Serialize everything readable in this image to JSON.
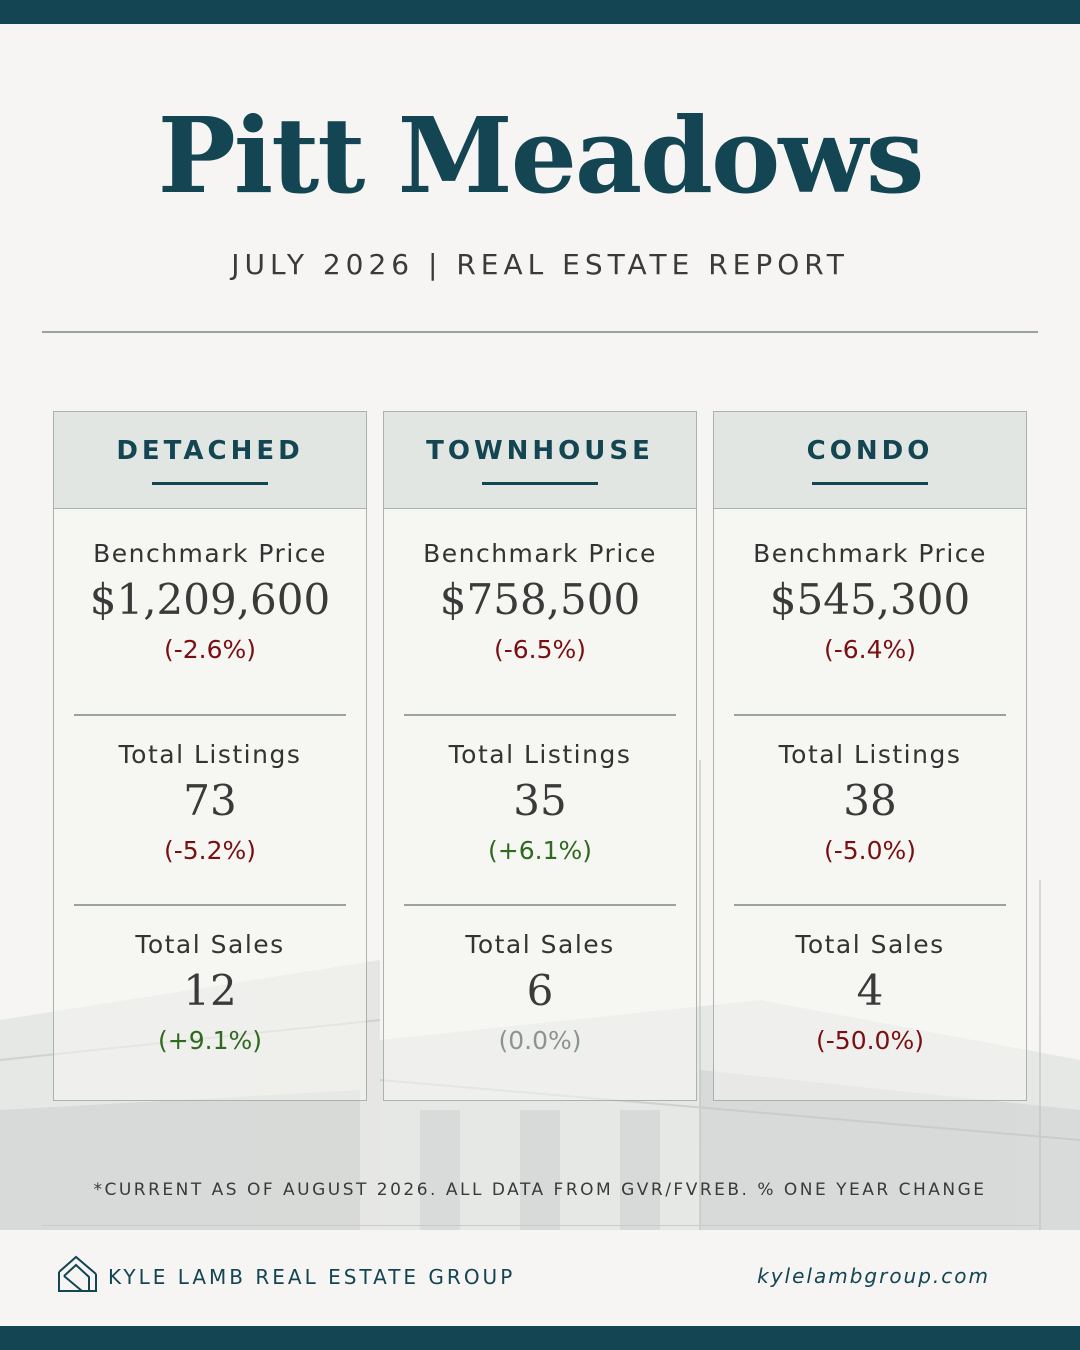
{
  "header": {
    "title": "Pitt Meadows",
    "subtitle": "JULY 2026 | REAL ESTATE REPORT"
  },
  "cards": [
    {
      "label": "DETACHED",
      "benchmark": {
        "name": "Benchmark Price",
        "value": "$1,209,600",
        "change": "(-2.6%)",
        "trend": "negative"
      },
      "listings": {
        "name": "Total Listings",
        "value": "73",
        "change": "(-5.2%)",
        "trend": "negative"
      },
      "sales": {
        "name": "Total Sales",
        "value": "12",
        "change": "(+9.1%)",
        "trend": "positive"
      }
    },
    {
      "label": "TOWNHOUSE",
      "benchmark": {
        "name": "Benchmark Price",
        "value": "$758,500",
        "change": "(-6.5%)",
        "trend": "negative"
      },
      "listings": {
        "name": "Total Listings",
        "value": "35",
        "change": "(+6.1%)",
        "trend": "positive"
      },
      "sales": {
        "name": "Total Sales",
        "value": "6",
        "change": "(0.0%)",
        "trend": "neutral"
      }
    },
    {
      "label": "CONDO",
      "benchmark": {
        "name": "Benchmark Price",
        "value": "$545,300",
        "change": "(-6.4%)",
        "trend": "negative"
      },
      "listings": {
        "name": "Total Listings",
        "value": "38",
        "change": "(-5.0%)",
        "trend": "negative"
      },
      "sales": {
        "name": "Total Sales",
        "value": "4",
        "change": "(-50.0%)",
        "trend": "negative"
      }
    }
  ],
  "colors": {
    "brand": "#134552",
    "negative": "#7a0f12",
    "positive": "#2f6a1e",
    "neutral": "#8a9590"
  },
  "footnote": "*CURRENT AS OF AUGUST 2026. ALL DATA FROM GVR/FVREB. % ONE YEAR CHANGE",
  "footer": {
    "logo_icon": "house-outline-icon",
    "brand": "KYLE LAMB REAL ESTATE GROUP",
    "website": "kylelambgroup.com"
  }
}
